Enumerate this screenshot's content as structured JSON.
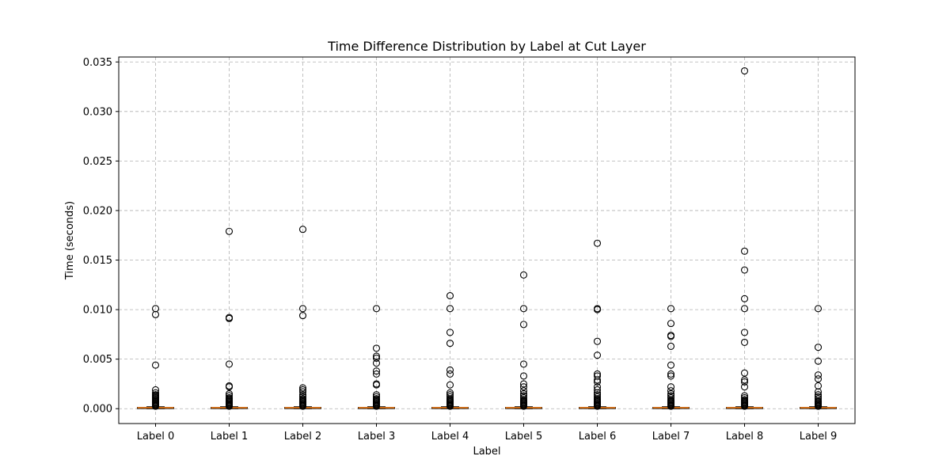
{
  "chart_data": {
    "type": "boxplot",
    "title": "Time Difference Distribution by Label at Cut Layer",
    "xlabel": "Label",
    "ylabel": "Time (seconds)",
    "ylim": [
      -0.0015,
      0.0355
    ],
    "yticks": [
      0.0,
      0.005,
      0.01,
      0.015,
      0.02,
      0.025,
      0.03,
      0.035
    ],
    "ytick_labels": [
      "0.000",
      "0.005",
      "0.010",
      "0.015",
      "0.020",
      "0.025",
      "0.030",
      "0.035"
    ],
    "grid": true,
    "categories": [
      "Label 0",
      "Label 1",
      "Label 2",
      "Label 3",
      "Label 4",
      "Label 5",
      "Label 6",
      "Label 7",
      "Label 8",
      "Label 9"
    ],
    "boxes": [
      {
        "label": "Label 0",
        "whisker_low": 0.0,
        "q1": 7e-05,
        "median": 0.0001,
        "q3": 0.00013,
        "whisker_high": 0.0002,
        "outliers": [
          0.0101,
          0.0095,
          0.0044,
          0.0019,
          0.0016,
          0.0014,
          0.0013,
          0.0012,
          0.0011,
          0.001,
          0.0009,
          0.0008,
          0.0007,
          0.0006,
          0.0005,
          0.0004,
          0.0003,
          0.00025
        ]
      },
      {
        "label": "Label 1",
        "whisker_low": 0.0,
        "q1": 7e-05,
        "median": 0.0001,
        "q3": 0.00013,
        "whisker_high": 0.0002,
        "outliers": [
          0.0179,
          0.0092,
          0.0091,
          0.0045,
          0.0023,
          0.0022,
          0.0015,
          0.0013,
          0.0011,
          0.001,
          0.0009,
          0.0008,
          0.0007,
          0.0006,
          0.0005,
          0.0004,
          0.0003,
          0.00025
        ]
      },
      {
        "label": "Label 2",
        "whisker_low": 0.0,
        "q1": 7e-05,
        "median": 0.0001,
        "q3": 0.00013,
        "whisker_high": 0.0002,
        "outliers": [
          0.0181,
          0.0101,
          0.0094,
          0.0021,
          0.0019,
          0.0017,
          0.0014,
          0.0012,
          0.001,
          0.0009,
          0.0008,
          0.0007,
          0.0006,
          0.0005,
          0.0004,
          0.0003,
          0.00025
        ]
      },
      {
        "label": "Label 3",
        "whisker_low": 0.0,
        "q1": 7e-05,
        "median": 0.0001,
        "q3": 0.00013,
        "whisker_high": 0.0002,
        "outliers": [
          0.0101,
          0.0061,
          0.0053,
          0.0051,
          0.0046,
          0.0038,
          0.0035,
          0.0025,
          0.0024,
          0.0014,
          0.0012,
          0.001,
          0.0009,
          0.0008,
          0.0007,
          0.0006,
          0.0005,
          0.0004,
          0.0003,
          0.00025
        ]
      },
      {
        "label": "Label 4",
        "whisker_low": 0.0,
        "q1": 7e-05,
        "median": 0.0001,
        "q3": 0.00013,
        "whisker_high": 0.0002,
        "outliers": [
          0.0114,
          0.0101,
          0.0077,
          0.0066,
          0.0039,
          0.0035,
          0.0024,
          0.0016,
          0.0014,
          0.0012,
          0.001,
          0.0009,
          0.0008,
          0.0007,
          0.0006,
          0.0005,
          0.0004,
          0.0003,
          0.00025
        ]
      },
      {
        "label": "Label 5",
        "whisker_low": 0.0,
        "q1": 7e-05,
        "median": 0.0001,
        "q3": 0.00013,
        "whisker_high": 0.0002,
        "outliers": [
          0.0135,
          0.0101,
          0.0085,
          0.0045,
          0.0033,
          0.0025,
          0.0022,
          0.0018,
          0.0015,
          0.0013,
          0.0011,
          0.0009,
          0.0008,
          0.0007,
          0.0006,
          0.0005,
          0.0004,
          0.0003,
          0.00025
        ]
      },
      {
        "label": "Label 6",
        "whisker_low": 0.0,
        "q1": 7e-05,
        "median": 0.0001,
        "q3": 0.00013,
        "whisker_high": 0.0002,
        "outliers": [
          0.0167,
          0.0101,
          0.01,
          0.0068,
          0.0054,
          0.0035,
          0.0033,
          0.0029,
          0.0027,
          0.0022,
          0.0019,
          0.0016,
          0.0014,
          0.0012,
          0.001,
          0.0009,
          0.0008,
          0.0007,
          0.0006,
          0.0005,
          0.0004,
          0.0003,
          0.00025
        ]
      },
      {
        "label": "Label 7",
        "whisker_low": 0.0,
        "q1": 7e-05,
        "median": 0.0001,
        "q3": 0.00013,
        "whisker_high": 0.0002,
        "outliers": [
          0.0101,
          0.0086,
          0.0074,
          0.0073,
          0.0063,
          0.0044,
          0.0035,
          0.0033,
          0.0022,
          0.0018,
          0.0015,
          0.0013,
          0.0011,
          0.0009,
          0.0008,
          0.0007,
          0.0006,
          0.0005,
          0.0004,
          0.0003,
          0.00025
        ]
      },
      {
        "label": "Label 8",
        "whisker_low": 0.0,
        "q1": 7e-05,
        "median": 0.0001,
        "q3": 0.00013,
        "whisker_high": 0.0002,
        "outliers": [
          0.0341,
          0.0159,
          0.014,
          0.0111,
          0.0101,
          0.0077,
          0.0067,
          0.0036,
          0.0029,
          0.0027,
          0.0022,
          0.0013,
          0.0011,
          0.0009,
          0.0008,
          0.0007,
          0.0006,
          0.0005,
          0.0004,
          0.0003,
          0.00025
        ]
      },
      {
        "label": "Label 9",
        "whisker_low": 0.0,
        "q1": 7e-05,
        "median": 0.0001,
        "q3": 0.00013,
        "whisker_high": 0.0002,
        "outliers": [
          0.0101,
          0.0062,
          0.0048,
          0.0034,
          0.003,
          0.0023,
          0.0017,
          0.0014,
          0.0012,
          0.001,
          0.0008,
          0.0007,
          0.0006,
          0.0005,
          0.0004,
          0.0003,
          0.00025
        ]
      }
    ],
    "colors": {
      "median": "#ff7f0e",
      "box": "#000000",
      "outlier_edge": "#000000",
      "grid": "#b0b0b0",
      "axis": "#000000"
    }
  }
}
